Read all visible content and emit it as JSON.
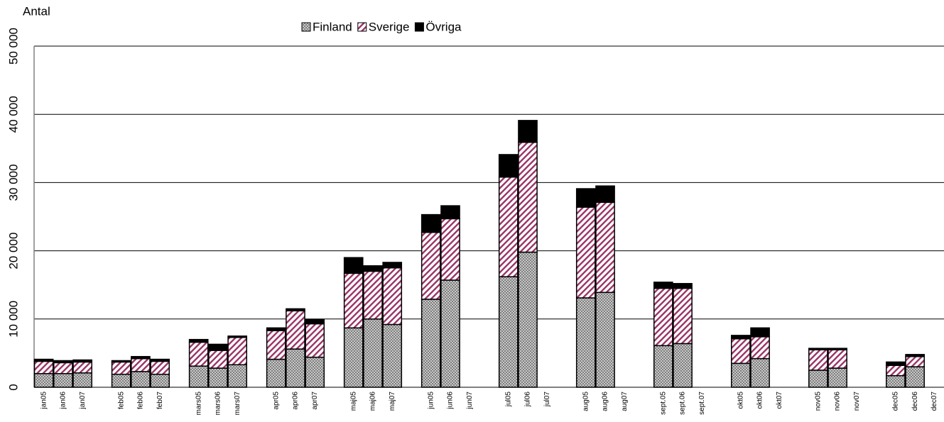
{
  "chart_data": {
    "type": "stacked_bar",
    "y_label": "Antal",
    "categories": [
      "jan05",
      "jan06",
      "jan07",
      null,
      "feb05",
      "feb06",
      "feb07",
      null,
      "mars05",
      "mars06",
      "mars07",
      null,
      "apr05",
      "apr06",
      "apr07",
      null,
      "maj05",
      "maj06",
      "maj07",
      null,
      "jun05",
      "jun06",
      "jun07",
      null,
      "jul05",
      "jul06",
      "jul07",
      null,
      "aug05",
      "aug06",
      "aug07",
      null,
      "sept.05",
      "sept.06",
      "sept.07",
      null,
      "okt05",
      "okt06",
      "okt07",
      null,
      "nov05",
      "nov06",
      "nov07",
      null,
      "dec05",
      "dec06",
      "dec07"
    ],
    "series": [
      {
        "name": "Finland",
        "color": "#7f7f7f",
        "values": [
          2000,
          2000,
          2100,
          null,
          1900,
          2300,
          1900,
          null,
          3100,
          2800,
          3300,
          null,
          4100,
          5600,
          4400,
          null,
          8700,
          10000,
          9200,
          null,
          12900,
          15700,
          null,
          null,
          16200,
          19800,
          null,
          null,
          13100,
          13900,
          null,
          null,
          6100,
          6400,
          null,
          null,
          3500,
          4200,
          null,
          null,
          2500,
          2800,
          null,
          null,
          1700,
          3000,
          null
        ]
      },
      {
        "name": "Sverige",
        "color": "#993366",
        "values": [
          1800,
          1600,
          1600,
          null,
          1800,
          1900,
          1900,
          null,
          3500,
          2600,
          4000,
          null,
          4200,
          5600,
          4900,
          null,
          8000,
          7000,
          8300,
          null,
          9800,
          9000,
          null,
          null,
          14600,
          16100,
          null,
          null,
          13300,
          13200,
          null,
          null,
          8400,
          8100,
          null,
          null,
          3600,
          3200,
          null,
          null,
          3000,
          2700,
          null,
          null,
          1500,
          1500,
          null
        ]
      },
      {
        "name": "Övriga",
        "color": "#000000",
        "values": [
          300,
          300,
          300,
          null,
          200,
          300,
          300,
          null,
          400,
          900,
          200,
          null,
          400,
          300,
          600,
          null,
          2300,
          800,
          800,
          null,
          2600,
          1900,
          null,
          null,
          3300,
          3200,
          null,
          null,
          2700,
          2400,
          null,
          null,
          900,
          700,
          null,
          null,
          500,
          1300,
          null,
          null,
          200,
          200,
          null,
          null,
          500,
          300,
          null
        ]
      }
    ],
    "ylim": [
      0,
      50000
    ],
    "yticks": [
      0,
      {
        "value": 10000,
        "label": "10 000"
      },
      {
        "value": 20000,
        "label": "20 000"
      },
      {
        "value": 30000,
        "label": "30 000"
      },
      {
        "value": 40000,
        "label": "40 000"
      },
      {
        "value": 50000,
        "label": "50 000"
      }
    ],
    "grid": true,
    "legend": "top"
  }
}
